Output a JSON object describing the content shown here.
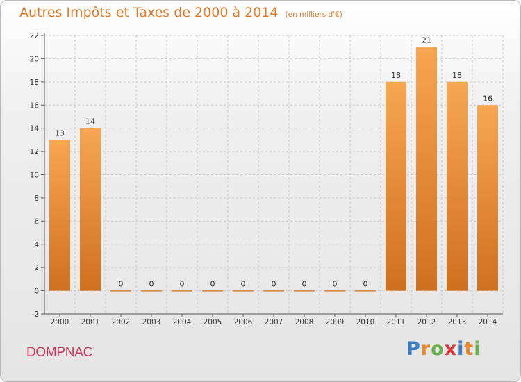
{
  "title": "Autres Impôts et Taxes de 2000 à 2014",
  "subtitle": "(en milliers d'€)",
  "commune": "DOMPNAC",
  "logo_letters": [
    {
      "ch": "P",
      "color": "#3a7cc0"
    },
    {
      "ch": "r",
      "color": "#e8862a"
    },
    {
      "ch": "o",
      "color": "#6ab04c"
    },
    {
      "ch": "x",
      "color": "#d8343a"
    },
    {
      "ch": "i",
      "color": "#3a7cc0"
    },
    {
      "ch": "t",
      "color": "#e8862a"
    },
    {
      "ch": "i",
      "color": "#6ab04c"
    }
  ],
  "colors": {
    "bar_top": "#f7a652",
    "bar_bottom": "#d0701f",
    "title": "#e07a2a",
    "commune": "#c8385a",
    "grid": "#c8c8c8"
  },
  "chart_data": {
    "type": "bar",
    "categories": [
      "2000",
      "2001",
      "2002",
      "2003",
      "2004",
      "2005",
      "2006",
      "2007",
      "2008",
      "2009",
      "2010",
      "2011",
      "2012",
      "2013",
      "2014"
    ],
    "values": [
      13,
      14,
      0,
      0,
      0,
      0,
      0,
      0,
      0,
      0,
      0,
      18,
      21,
      18,
      16
    ],
    "data_labels": [
      "13",
      "14",
      "0",
      "0",
      "0",
      "0",
      "0",
      "0",
      "0",
      "0",
      "0",
      "18",
      "21",
      "18",
      "16"
    ],
    "title": "Autres Impôts et Taxes de 2000 à 2014",
    "xlabel": "",
    "ylabel": "",
    "ylim": [
      -2,
      22
    ],
    "yticks": [
      -2,
      0,
      2,
      4,
      6,
      8,
      10,
      12,
      14,
      16,
      18,
      20,
      22
    ],
    "grid": true
  }
}
